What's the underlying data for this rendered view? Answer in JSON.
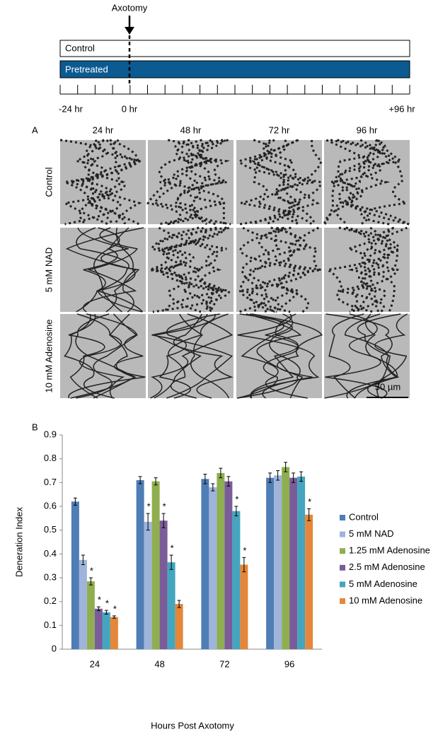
{
  "timeline": {
    "event": "Axotomy",
    "bars": [
      "Control",
      "Pretreated"
    ],
    "ticks": [
      "-24 hr",
      "0 hr",
      "+96 hr"
    ]
  },
  "panel_a": {
    "label": "A",
    "columns": [
      "24 hr",
      "48 hr",
      "72 hr",
      "96 hr"
    ],
    "rows": [
      "Control",
      "5 mM NAD",
      "10 mM Adenosine"
    ],
    "scale_bar": "50 µm"
  },
  "chart_data": {
    "type": "bar",
    "panel_label": "B",
    "xlabel": "Hours Post Axotomy",
    "ylabel": "Deneration Index",
    "categories": [
      "24",
      "48",
      "72",
      "96"
    ],
    "ylim": [
      0,
      0.9
    ],
    "yticks": [
      0,
      0.1,
      0.2,
      0.3,
      0.4,
      0.5,
      0.6,
      0.7,
      0.8,
      0.9
    ],
    "grid": false,
    "legend": "right",
    "series": [
      {
        "name": "Control",
        "color": "#4f7db5",
        "values": [
          0.62,
          0.71,
          0.715,
          0.72
        ],
        "errors": [
          0.015,
          0.015,
          0.02,
          0.02
        ],
        "annotations": [
          null,
          null,
          null,
          null
        ]
      },
      {
        "name": "5 mM NAD",
        "color": "#9eb4da",
        "values": [
          0.375,
          0.535,
          0.68,
          0.73
        ],
        "errors": [
          0.02,
          0.035,
          0.015,
          0.02
        ],
        "annotations": [
          null,
          "*",
          null,
          null
        ]
      },
      {
        "name": "1.25 mM Adenosine",
        "color": "#8fae4f",
        "values": [
          0.285,
          0.705,
          0.74,
          0.765
        ],
        "errors": [
          0.015,
          0.015,
          0.02,
          0.02
        ],
        "annotations": [
          "*",
          null,
          null,
          null
        ]
      },
      {
        "name": "2.5 mM Adenosine",
        "color": "#7a5c9a",
        "values": [
          0.17,
          0.54,
          0.705,
          0.72
        ],
        "errors": [
          0.008,
          0.03,
          0.02,
          0.02
        ],
        "annotations": [
          "*",
          "*",
          null,
          null
        ]
      },
      {
        "name": "5 mM Adenosine",
        "color": "#44a5be",
        "values": [
          0.155,
          0.365,
          0.58,
          0.725
        ],
        "errors": [
          0.008,
          0.03,
          0.02,
          0.02
        ],
        "annotations": [
          "*",
          "*",
          "*",
          null
        ]
      },
      {
        "name": "10 mM Adenosine",
        "color": "#e4873a",
        "values": [
          0.135,
          0.19,
          0.355,
          0.565
        ],
        "errors": [
          0.005,
          0.015,
          0.03,
          0.025
        ],
        "annotations": [
          "*",
          null,
          "*",
          "*"
        ]
      }
    ]
  }
}
